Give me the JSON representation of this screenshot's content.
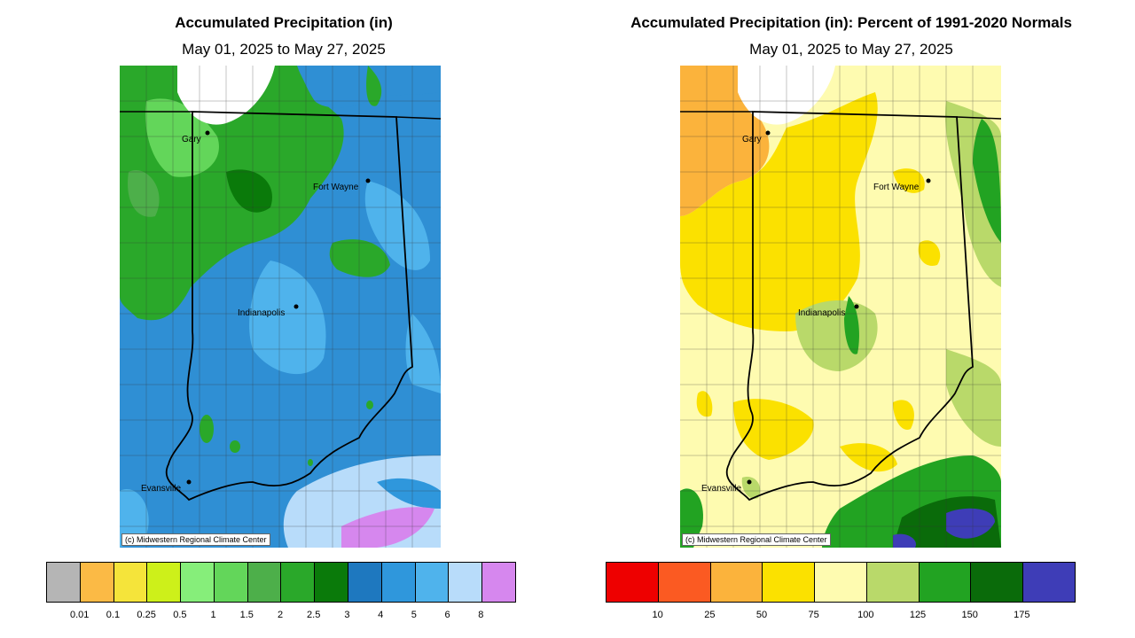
{
  "left": {
    "title": "Accumulated Precipitation (in)",
    "subtitle": "May 01, 2025 to May 27, 2025",
    "credit": "(c) Midwestern Regional Climate Center",
    "legend_colors": [
      "#b5b5b5",
      "#fbba45",
      "#f5e43a",
      "#cdf01a",
      "#86ee7a",
      "#63d65a",
      "#4daf4a",
      "#2aa82a",
      "#0a7a0a",
      "#1e78bf",
      "#2f97dc",
      "#4fb3ec",
      "#b8dcfa",
      "#d687ee"
    ],
    "legend_ticks": [
      "0.01",
      "0.1",
      "0.25",
      "0.5",
      "1",
      "1.5",
      "2",
      "2.5",
      "3",
      "4",
      "5",
      "6",
      "8"
    ]
  },
  "right": {
    "title": "Accumulated Precipitation (in): Percent of 1991-2020 Normals",
    "subtitle": "May 01, 2025 to May 27, 2025",
    "credit": "(c) Midwestern Regional Climate Center",
    "legend_colors": [
      "#ee0000",
      "#fb5a22",
      "#fbb33c",
      "#fbe100",
      "#fefbb0",
      "#b9d96a",
      "#22a322",
      "#0a6b0a",
      "#3e3db7"
    ],
    "legend_ticks": [
      "10",
      "25",
      "50",
      "75",
      "100",
      "125",
      "150",
      "175"
    ]
  },
  "cities": {
    "gary": "Gary",
    "fort_wayne": "Fort Wayne",
    "indianapolis": "Indianapolis",
    "evansville": "Evansville"
  },
  "colors": {
    "lake": "#ffffff",
    "state_border": "#000000",
    "county_border": "#333333"
  }
}
